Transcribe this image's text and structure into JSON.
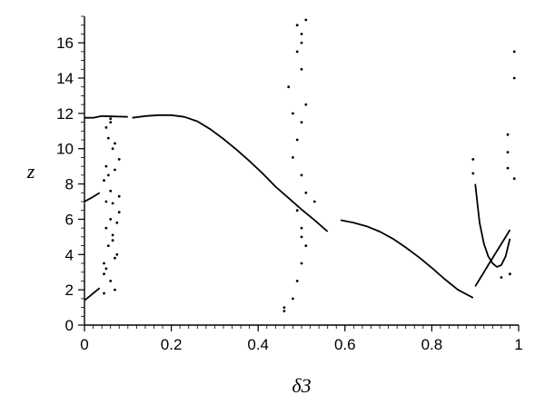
{
  "chart_data": {
    "type": "scatter",
    "title": "",
    "xlabel": "δ3",
    "ylabel": "z",
    "xlim": [
      0,
      1
    ],
    "ylim": [
      0,
      17.5
    ],
    "xticks": [
      0,
      0.2,
      0.4,
      0.6,
      0.8,
      1
    ],
    "xtick_labels": [
      "0",
      "0.2",
      "0.4",
      "0.6",
      "0.8",
      "1"
    ],
    "yticks": [
      0,
      2,
      4,
      6,
      8,
      10,
      12,
      14,
      16
    ],
    "ytick_labels": [
      "0",
      "2",
      "4",
      "6",
      "8",
      "10",
      "12",
      "14",
      "16"
    ],
    "grid": false,
    "legend": "none",
    "colors": {
      "marks": "#000000",
      "background": "#ffffff"
    },
    "series": [
      {
        "kind": "line",
        "x": [
          0.11,
          0.14,
          0.17,
          0.2,
          0.23,
          0.26,
          0.29,
          0.32,
          0.35,
          0.38,
          0.41,
          0.44,
          0.47,
          0.5,
          0.53,
          0.56
        ],
        "y": [
          11.75,
          11.85,
          11.9,
          11.9,
          11.8,
          11.55,
          11.1,
          10.55,
          9.95,
          9.3,
          8.6,
          7.85,
          7.2,
          6.55,
          5.95,
          5.3
        ]
      },
      {
        "kind": "line",
        "x": [
          0.59,
          0.62,
          0.65,
          0.68,
          0.71,
          0.74,
          0.77,
          0.8,
          0.83,
          0.86,
          0.895
        ],
        "y": [
          5.95,
          5.8,
          5.6,
          5.3,
          4.9,
          4.4,
          3.85,
          3.25,
          2.6,
          2.0,
          1.55
        ]
      },
      {
        "kind": "line",
        "x": [
          0.0,
          0.01,
          0.02,
          0.035
        ],
        "y": [
          1.4,
          1.6,
          1.8,
          2.1
        ]
      },
      {
        "kind": "line",
        "x": [
          0.0,
          0.015,
          0.035
        ],
        "y": [
          7.0,
          7.2,
          7.5
        ]
      },
      {
        "kind": "line",
        "x": [
          0.0,
          0.02,
          0.04,
          0.1
        ],
        "y": [
          11.75,
          11.75,
          11.85,
          11.8
        ]
      },
      {
        "kind": "line",
        "x": [
          0.9,
          0.91,
          0.92,
          0.93,
          0.94,
          0.95,
          0.96,
          0.97,
          0.98
        ],
        "y": [
          8.0,
          5.8,
          4.6,
          3.9,
          3.5,
          3.3,
          3.4,
          3.9,
          4.9
        ]
      },
      {
        "kind": "line",
        "x": [
          0.9,
          0.91,
          0.92,
          0.93,
          0.94,
          0.95,
          0.96,
          0.97,
          0.98
        ],
        "y": [
          2.2,
          2.6,
          3.0,
          3.4,
          3.8,
          4.2,
          4.6,
          5.0,
          5.4
        ]
      },
      {
        "kind": "scatter",
        "x": [
          0.045,
          0.06,
          0.05,
          0.07,
          0.055,
          0.065,
          0.075,
          0.08,
          0.05,
          0.06,
          0.045,
          0.07,
          0.08,
          0.065,
          0.055,
          0.05,
          0.06,
          0.07,
          0.045,
          0.075,
          0.05,
          0.065,
          0.055,
          0.07,
          0.06,
          0.045,
          0.08,
          0.05,
          0.065,
          0.06
        ],
        "y": [
          1.8,
          2.5,
          3.2,
          3.8,
          4.5,
          5.1,
          5.8,
          6.4,
          7.0,
          7.6,
          8.2,
          8.8,
          9.4,
          10.0,
          10.6,
          11.2,
          11.7,
          2.0,
          2.9,
          4.0,
          5.5,
          6.9,
          8.5,
          10.3,
          11.5,
          3.5,
          7.3,
          9.0,
          4.8,
          6.0
        ]
      },
      {
        "kind": "scatter",
        "x": [
          0.46,
          0.48,
          0.49,
          0.5,
          0.51,
          0.5,
          0.49,
          0.51,
          0.5,
          0.48,
          0.49,
          0.5,
          0.51,
          0.47,
          0.5,
          0.49,
          0.5,
          0.51,
          0.49,
          0.5,
          0.46,
          0.53,
          0.48,
          0.5
        ],
        "y": [
          0.8,
          1.5,
          2.5,
          3.5,
          4.5,
          5.5,
          6.5,
          7.5,
          8.5,
          9.5,
          10.5,
          11.5,
          12.5,
          13.5,
          14.5,
          15.5,
          16.5,
          17.3,
          17.0,
          16.0,
          1.0,
          7.0,
          12.0,
          5.0
        ]
      },
      {
        "kind": "scatter",
        "x": [
          0.895,
          0.895,
          0.975,
          0.975,
          0.975,
          0.99,
          0.99,
          0.99,
          0.98,
          0.96
        ],
        "y": [
          9.4,
          8.6,
          10.8,
          9.8,
          8.9,
          15.5,
          14.0,
          8.3,
          2.9,
          2.7
        ]
      }
    ]
  }
}
